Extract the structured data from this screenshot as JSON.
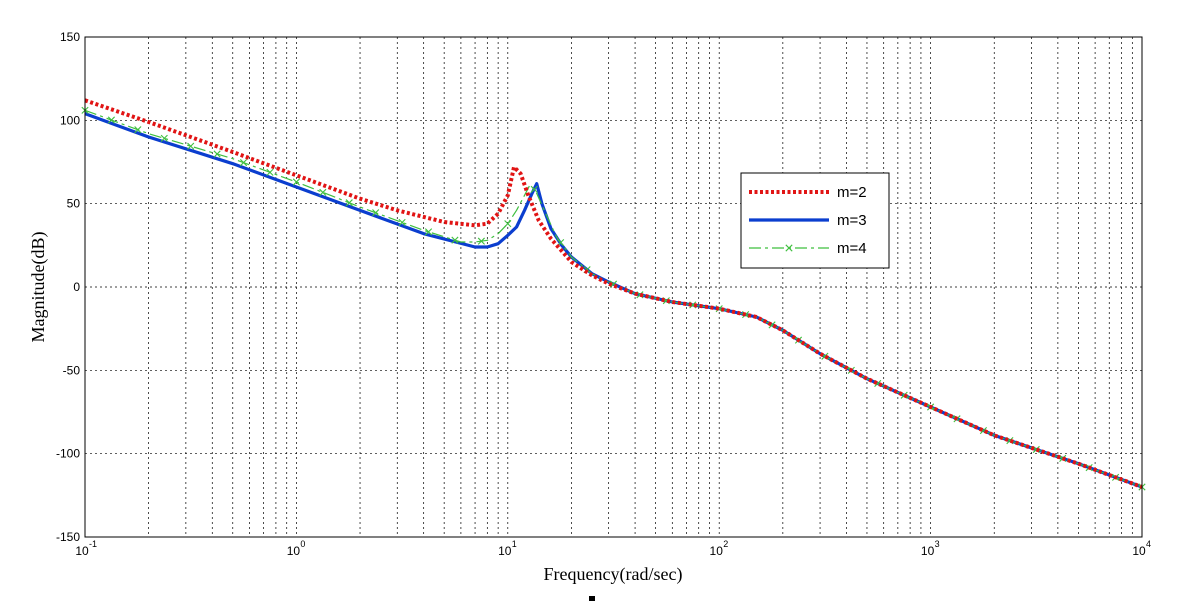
{
  "chart_data": {
    "type": "line",
    "xscale": "log",
    "xlim": [
      0.1,
      10000
    ],
    "ylim": [
      -150,
      150
    ],
    "grid": true,
    "xlabel": "Frequency(rad/sec)",
    "ylabel": "Magnitude(dB)",
    "legend_position": "right",
    "x_tick_labels": [
      {
        "base": "10",
        "exp": "-1"
      },
      {
        "base": "10",
        "exp": "0"
      },
      {
        "base": "10",
        "exp": "1"
      },
      {
        "base": "10",
        "exp": "2"
      },
      {
        "base": "10",
        "exp": "3"
      },
      {
        "base": "10",
        "exp": "4"
      }
    ],
    "y_ticks": [
      150,
      100,
      50,
      0,
      -50,
      -100,
      -150
    ],
    "series": [
      {
        "name": "m=2",
        "color": "#e11414",
        "style": "dotted",
        "x": [
          0.1,
          0.2,
          0.5,
          1,
          2,
          3,
          5,
          7,
          8,
          9,
          10,
          10.7,
          11.5,
          12.5,
          14,
          16,
          20,
          25,
          30,
          40,
          60,
          100,
          150,
          200,
          300,
          500,
          1000,
          2000,
          5000,
          10000
        ],
        "y": [
          112,
          99,
          81,
          67,
          53,
          46,
          39,
          37,
          38,
          44,
          55,
          72,
          68,
          55,
          40,
          29,
          15,
          7,
          2,
          -4,
          -9,
          -13,
          -18,
          -26,
          -40,
          -55,
          -72,
          -89,
          -106,
          -120
        ]
      },
      {
        "name": "m=3",
        "color": "#0b3ecf",
        "style": "solid",
        "x": [
          0.1,
          0.2,
          0.5,
          1,
          2,
          4,
          7,
          8,
          9,
          10,
          11,
          12,
          13,
          13.7,
          14.5,
          16,
          18,
          20,
          25,
          30,
          40,
          60,
          100,
          150,
          200,
          300,
          500,
          1000,
          2000,
          5000,
          10000
        ],
        "y": [
          104,
          90,
          74,
          60,
          46,
          32,
          24,
          24,
          26,
          31,
          36,
          46,
          56,
          62,
          50,
          35,
          25,
          18,
          8,
          3,
          -4,
          -9,
          -13,
          -18,
          -26,
          -40,
          -55,
          -72,
          -89,
          -106,
          -120
        ]
      },
      {
        "name": "m=4",
        "color": "#3fbf3f",
        "style": "dashdot",
        "x": [
          0.1,
          0.2,
          0.5,
          1,
          2,
          4,
          6,
          7,
          8,
          9,
          10,
          11,
          12,
          12.7,
          13.5,
          15,
          17,
          20,
          25,
          30,
          40,
          60,
          100,
          150,
          200,
          300,
          500,
          1000,
          2000,
          5000,
          10000
        ],
        "y": [
          106,
          92,
          77,
          63,
          48,
          34,
          27,
          27,
          28,
          32,
          38,
          46,
          55,
          61,
          58,
          45,
          30,
          18,
          8,
          3,
          -4,
          -9,
          -13,
          -18,
          -26,
          -40,
          -55,
          -72,
          -89,
          -106,
          -120
        ]
      }
    ]
  }
}
